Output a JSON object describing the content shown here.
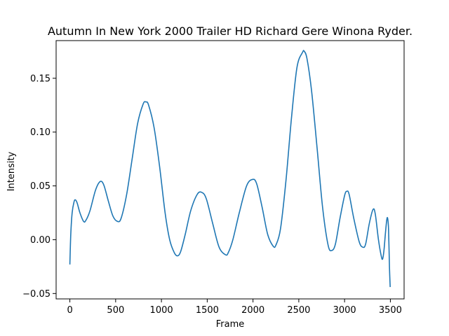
{
  "chart_data": {
    "type": "line",
    "title": "Autumn In New York 2000 Trailer HD  Richard Gere  Winona Ryder.",
    "xlabel": "Frame",
    "ylabel": "Intensity",
    "xlim": [
      -150,
      3650
    ],
    "ylim": [
      -0.055,
      0.185
    ],
    "x_ticks": [
      0,
      500,
      1000,
      1500,
      2000,
      2500,
      3000,
      3500
    ],
    "x_tick_labels": [
      "0",
      "500",
      "1000",
      "1500",
      "2000",
      "2500",
      "3000",
      "3500"
    ],
    "y_ticks": [
      -0.05,
      0.0,
      0.05,
      0.1,
      0.15
    ],
    "y_tick_labels": [
      "−0.05",
      "0.00",
      "0.05",
      "0.10",
      "0.15"
    ],
    "grid": false,
    "series": [
      {
        "color": "#1f77b4",
        "points": [
          [
            0,
            -0.023
          ],
          [
            10,
            0.005
          ],
          [
            25,
            0.025
          ],
          [
            45,
            0.035
          ],
          [
            60,
            0.037
          ],
          [
            80,
            0.034
          ],
          [
            110,
            0.025
          ],
          [
            150,
            0.017
          ],
          [
            175,
            0.018
          ],
          [
            220,
            0.027
          ],
          [
            280,
            0.046
          ],
          [
            330,
            0.054
          ],
          [
            370,
            0.051
          ],
          [
            420,
            0.036
          ],
          [
            470,
            0.022
          ],
          [
            520,
            0.017
          ],
          [
            560,
            0.02
          ],
          [
            620,
            0.042
          ],
          [
            680,
            0.075
          ],
          [
            740,
            0.108
          ],
          [
            800,
            0.126
          ],
          [
            830,
            0.128
          ],
          [
            860,
            0.125
          ],
          [
            920,
            0.104
          ],
          [
            980,
            0.068
          ],
          [
            1040,
            0.025
          ],
          [
            1090,
            0.0
          ],
          [
            1140,
            -0.012
          ],
          [
            1175,
            -0.015
          ],
          [
            1210,
            -0.011
          ],
          [
            1260,
            0.005
          ],
          [
            1320,
            0.027
          ],
          [
            1390,
            0.042
          ],
          [
            1440,
            0.044
          ],
          [
            1490,
            0.038
          ],
          [
            1560,
            0.015
          ],
          [
            1630,
            -0.007
          ],
          [
            1700,
            -0.014
          ],
          [
            1730,
            -0.012
          ],
          [
            1780,
            0.0
          ],
          [
            1850,
            0.025
          ],
          [
            1930,
            0.05
          ],
          [
            1995,
            0.056
          ],
          [
            2040,
            0.052
          ],
          [
            2100,
            0.03
          ],
          [
            2160,
            0.005
          ],
          [
            2220,
            -0.006
          ],
          [
            2250,
            -0.005
          ],
          [
            2300,
            0.01
          ],
          [
            2360,
            0.055
          ],
          [
            2420,
            0.113
          ],
          [
            2480,
            0.16
          ],
          [
            2540,
            0.174
          ],
          [
            2560,
            0.175
          ],
          [
            2590,
            0.168
          ],
          [
            2640,
            0.138
          ],
          [
            2700,
            0.085
          ],
          [
            2760,
            0.03
          ],
          [
            2820,
            -0.005
          ],
          [
            2860,
            -0.01
          ],
          [
            2900,
            -0.004
          ],
          [
            2950,
            0.02
          ],
          [
            3000,
            0.041
          ],
          [
            3025,
            0.045
          ],
          [
            3050,
            0.042
          ],
          [
            3100,
            0.02
          ],
          [
            3160,
            -0.002
          ],
          [
            3200,
            -0.007
          ],
          [
            3230,
            -0.004
          ],
          [
            3270,
            0.015
          ],
          [
            3310,
            0.028
          ],
          [
            3335,
            0.024
          ],
          [
            3370,
            0.0
          ],
          [
            3400,
            -0.015
          ],
          [
            3415,
            -0.018
          ],
          [
            3430,
            -0.01
          ],
          [
            3445,
            0.005
          ],
          [
            3460,
            0.018
          ],
          [
            3470,
            0.02
          ],
          [
            3480,
            0.01
          ],
          [
            3490,
            -0.025
          ],
          [
            3498,
            -0.044
          ]
        ]
      }
    ]
  }
}
